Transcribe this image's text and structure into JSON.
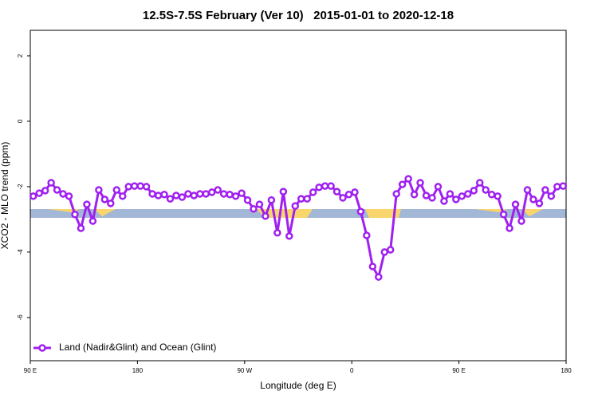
{
  "chart_data": {
    "type": "line",
    "title": "12.5S-7.5S February (Ver 10)   2015-01-01 to 2020-12-18",
    "x_label": "Longitude (deg E)",
    "y_label": "XCO2 - MLO trend (ppm)",
    "xlim": [
      90,
      540
    ],
    "ylim": [
      -7.32,
      2.78
    ],
    "xticks": [
      {
        "value": 90,
        "label": "90 E"
      },
      180,
      {
        "value": 270,
        "label": "90 W"
      },
      {
        "value": 360,
        "label": "0"
      },
      {
        "value": 450,
        "label": "90 E"
      },
      {
        "value": 540,
        "label": "180"
      }
    ],
    "yticks": [
      2,
      0,
      -2,
      -4,
      -6
    ],
    "legend": "bottomleft",
    "x": [
      92.5,
      97.5,
      102.5,
      107.5,
      112.5,
      117.5,
      122.5,
      127.5,
      132.5,
      137.5,
      142.5,
      147.5,
      152.5,
      157.5,
      162.5,
      167.5,
      172.5,
      177.5,
      182.5,
      187.5,
      192.5,
      197.5,
      202.5,
      207.5,
      212.5,
      217.5,
      222.5,
      227.5,
      232.5,
      237.5,
      242.5,
      247.5,
      252.5,
      257.5,
      262.5,
      267.5,
      272.5,
      277.5,
      282.5,
      287.5,
      292.5,
      297.5,
      302.5,
      307.5,
      312.5,
      317.5,
      322.5,
      327.5,
      332.5,
      337.5,
      342.5,
      347.5,
      352.5,
      357.5,
      362.5,
      367.5,
      372.5,
      377.5,
      382.5,
      387.5,
      392.5,
      397.5,
      402.5,
      407.5,
      412.5,
      417.5,
      422.5,
      427.5,
      432.5,
      437.5,
      442.5,
      447.5,
      452.5,
      457.5,
      462.5,
      467.5,
      472.5,
      477.5,
      482.5,
      487.5,
      492.5,
      497.5,
      502.5,
      507.5,
      512.5,
      517.5,
      522.5,
      527.5,
      532.5,
      537.5
    ],
    "series": [
      {
        "name": "Land (Nadir&Glint) and Ocean (Glint)",
        "color": "#a020f0",
        "values": [
          -2.29,
          -2.2,
          -2.12,
          -1.88,
          -2.1,
          -2.22,
          -2.29,
          -2.85,
          -3.27,
          -2.54,
          -3.05,
          -2.1,
          -2.39,
          -2.51,
          -2.1,
          -2.29,
          -2.0,
          -1.98,
          -1.98,
          -2.0,
          -2.22,
          -2.27,
          -2.24,
          -2.37,
          -2.27,
          -2.32,
          -2.22,
          -2.27,
          -2.22,
          -2.22,
          -2.17,
          -2.1,
          -2.22,
          -2.24,
          -2.29,
          -2.2,
          -2.41,
          -2.68,
          -2.54,
          -2.9,
          -2.41,
          -3.41,
          -2.15,
          -3.51,
          -2.59,
          -2.37,
          -2.37,
          -2.17,
          -2.02,
          -1.98,
          -1.98,
          -2.15,
          -2.34,
          -2.24,
          -2.17,
          -2.76,
          -3.49,
          -4.44,
          -4.76,
          -4.0,
          -3.93,
          -2.22,
          -1.93,
          -1.76,
          -2.24,
          -1.88,
          -2.27,
          -2.34,
          -2.0,
          -2.44,
          -2.22,
          -2.39,
          -2.29,
          -2.22,
          -2.12,
          -1.88,
          -2.1,
          -2.24,
          -2.29,
          -2.85,
          -3.27,
          -2.54,
          -3.05,
          -2.1,
          -2.39,
          -2.51,
          -2.1,
          -2.29,
          -2.0,
          -1.98
        ]
      }
    ]
  }
}
